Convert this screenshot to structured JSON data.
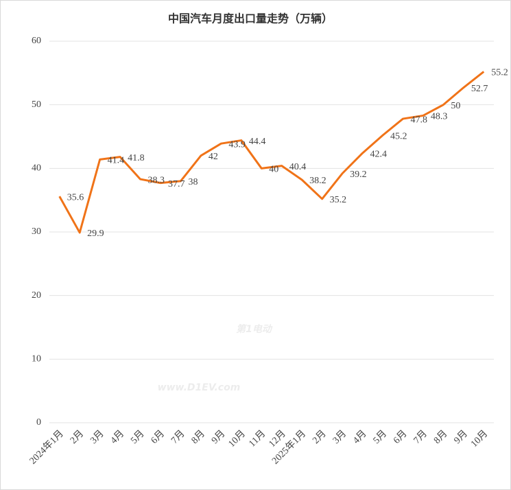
{
  "chart_data": {
    "type": "line",
    "title": "中国汽车月度出口量走势（万辆）",
    "categories": [
      "2024年1月",
      "2月",
      "3月",
      "4月",
      "5月",
      "6月",
      "7月",
      "8月",
      "9月",
      "10月",
      "11月",
      "12月",
      "2025年1月",
      "2月",
      "3月",
      "4月",
      "5月",
      "6月",
      "7月",
      "8月",
      "9月",
      "10月"
    ],
    "values": [
      35.6,
      29.9,
      41.4,
      41.8,
      38.3,
      37.7,
      38,
      42,
      43.9,
      44.4,
      40,
      40.4,
      38.2,
      35.2,
      39.2,
      42.4,
      45.2,
      47.8,
      48.3,
      50,
      52.7,
      55.2
    ],
    "color": "#f07318",
    "ylim": [
      0,
      60
    ],
    "yticks": [
      0,
      10,
      20,
      30,
      40,
      50,
      60
    ],
    "grid": true,
    "watermark": [
      "第1电动",
      "www.D1EV.com"
    ]
  }
}
